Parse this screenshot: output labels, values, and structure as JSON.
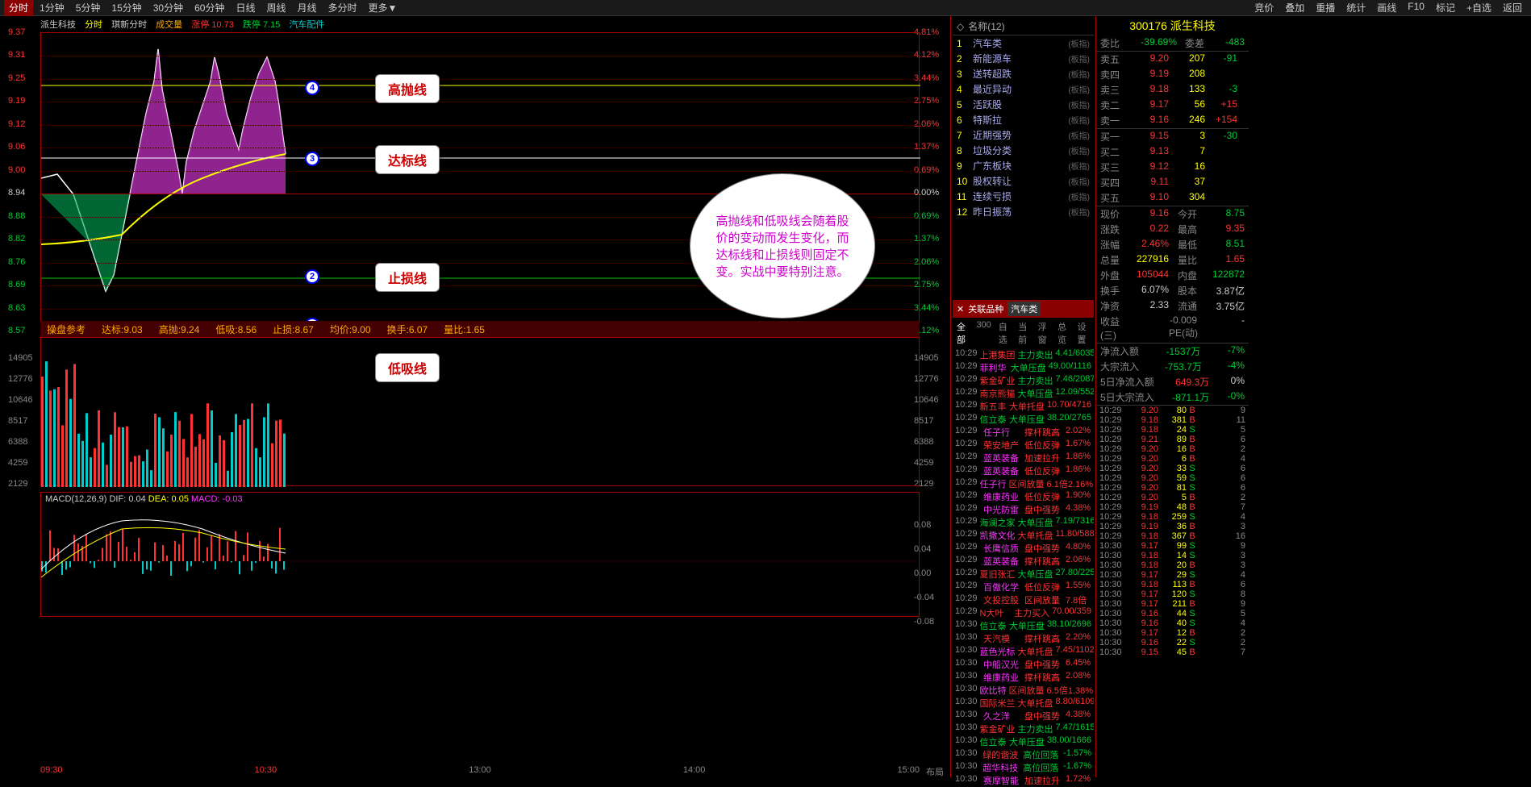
{
  "topMenu": {
    "left": [
      "分时",
      "1分钟",
      "5分钟",
      "15分钟",
      "30分钟",
      "60分钟",
      "日线",
      "周线",
      "月线",
      "多分时",
      "更多▼"
    ],
    "right": [
      "竞价",
      "叠加",
      "重播",
      "统计",
      "画线",
      "F10",
      "标记",
      "+自选",
      "返回"
    ],
    "activeIndex": 0
  },
  "chartHeader": {
    "stock": "派生科技",
    "period": "分时",
    "variant": "琪新分时",
    "volLabel": "成交量",
    "upLimit": "涨停 10.73",
    "downLimit": "跌停 7.15",
    "sector": "汽车配件"
  },
  "priceAxis": {
    "left": [
      "9.37",
      "9.31",
      "9.25",
      "9.19",
      "9.12",
      "9.06",
      "9.00",
      "8.94",
      "8.88",
      "8.82",
      "8.76",
      "8.69",
      "8.63",
      "8.57"
    ],
    "right": [
      "4.81%",
      "4.12%",
      "3.44%",
      "2.75%",
      "2.06%",
      "1.37%",
      "0.69%",
      "0.00%",
      "0.69%",
      "1.37%",
      "2.06%",
      "2.75%",
      "3.44%",
      "4.12%"
    ]
  },
  "volumeAxis": [
    "14905",
    "12776",
    "10646",
    "8517",
    "6388",
    "4259",
    "2129"
  ],
  "annotations": {
    "a1": "高抛线",
    "a2": "达标线",
    "a3": "止损线",
    "a4": "低吸线",
    "bubble": "高抛线和低吸线会随着股价的变动而发生变化，而达标线和止损线则固定不变。实战中要特别注意。"
  },
  "indicatorBar": {
    "title": "操盘参考",
    "dabiao": "达标:9.03",
    "gaopao": "高抛:9.24",
    "dixi": "低吸:8.56",
    "zhisun": "止损:8.67",
    "junjia": "均价:9.00",
    "huanshou": "换手:6.07",
    "liangbi": "量比:1.65"
  },
  "macd": {
    "title": "MACD(12,26,9)",
    "dif": "DIF: 0.04",
    "dea": "DEA: 0.05",
    "macd": "MACD: -0.03",
    "axis": [
      "0.08",
      "0.04",
      "0.00",
      "-0.04",
      "-0.08"
    ]
  },
  "timeAxis": [
    "09:30",
    "10:30",
    "13:00",
    "14:00",
    "15:00"
  ],
  "footerLabel": "布局",
  "categoryPanel": {
    "header": "名称(12)",
    "items": [
      {
        "idx": "1",
        "name": "汽车类",
        "tag": "(板指)"
      },
      {
        "idx": "2",
        "name": "新能源车",
        "tag": "(板指)"
      },
      {
        "idx": "3",
        "name": "送转超跌",
        "tag": "(板指)"
      },
      {
        "idx": "4",
        "name": "最近异动",
        "tag": "(板指)"
      },
      {
        "idx": "5",
        "name": "活跃股",
        "tag": "(板指)"
      },
      {
        "idx": "6",
        "name": "特斯拉",
        "tag": "(板指)"
      },
      {
        "idx": "7",
        "name": "近期强势",
        "tag": "(板指)"
      },
      {
        "idx": "8",
        "name": "垃圾分类",
        "tag": "(板指)"
      },
      {
        "idx": "9",
        "name": "广东板块",
        "tag": "(板指)"
      },
      {
        "idx": "10",
        "name": "股权转让",
        "tag": "(板指)"
      },
      {
        "idx": "11",
        "name": "连续亏损",
        "tag": "(板指)"
      },
      {
        "idx": "12",
        "name": "昨日振荡",
        "tag": "(板指)"
      }
    ]
  },
  "relatedHeader": {
    "title": "关联品种",
    "sector": "汽车类"
  },
  "relatedTabs": [
    "全部",
    "300",
    "自选",
    "当前",
    "浮窗",
    "总览",
    "设置"
  ],
  "newsFeed": [
    {
      "t": "10:29",
      "s": "上港集团",
      "a": "主力卖出",
      "v": "4.41/6035",
      "sc": "red",
      "ac": "green"
    },
    {
      "t": "10:29",
      "s": "菲利华",
      "a": "大单压盘",
      "v": "49.00/1116",
      "sc": "magenta",
      "ac": "green"
    },
    {
      "t": "10:29",
      "s": "紫金矿业",
      "a": "主力卖出",
      "v": "7.46/20871",
      "sc": "red",
      "ac": "green"
    },
    {
      "t": "10:29",
      "s": "南京熊猫",
      "a": "大单压盘",
      "v": "12.09/5522",
      "sc": "red",
      "ac": "green"
    },
    {
      "t": "10:29",
      "s": "新五丰",
      "a": "大单托盘",
      "v": "10.70/4716",
      "sc": "red",
      "ac": "red"
    },
    {
      "t": "10:29",
      "s": "信立泰",
      "a": "大单压盘",
      "v": "38.20/2765",
      "sc": "green",
      "ac": "green"
    },
    {
      "t": "10:29",
      "s": "任子行",
      "a": "撑杆跳高",
      "v": "2.02%",
      "sc": "magenta",
      "ac": "red"
    },
    {
      "t": "10:29",
      "s": "荣安地产",
      "a": "低位反弹",
      "v": "1.67%",
      "sc": "red",
      "ac": "red"
    },
    {
      "t": "10:29",
      "s": "蓝英装备",
      "a": "加速拉升",
      "v": "1.86%",
      "sc": "magenta",
      "ac": "red"
    },
    {
      "t": "10:29",
      "s": "蓝英装备",
      "a": "低位反弹",
      "v": "1.86%",
      "sc": "magenta",
      "ac": "red"
    },
    {
      "t": "10:29",
      "s": "任子行",
      "a": "区间放量",
      "v": "6.1倍2.16%",
      "sc": "magenta",
      "ac": "red"
    },
    {
      "t": "10:29",
      "s": "维康药业",
      "a": "低位反弹",
      "v": "1.90%",
      "sc": "magenta",
      "ac": "red"
    },
    {
      "t": "10:29",
      "s": "中光防雷",
      "a": "盘中强势",
      "v": "4.38%",
      "sc": "magenta",
      "ac": "red"
    },
    {
      "t": "10:29",
      "s": "海澜之家",
      "a": "大单压盘",
      "v": "7.19/7316",
      "sc": "green",
      "ac": "green"
    },
    {
      "t": "10:29",
      "s": "凯撒文化",
      "a": "大单托盘",
      "v": "11.80/5883",
      "sc": "magenta",
      "ac": "red"
    },
    {
      "t": "10:29",
      "s": "长鹰信质",
      "a": "盘中强势",
      "v": "4.80%",
      "sc": "magenta",
      "ac": "red"
    },
    {
      "t": "10:29",
      "s": "蓝英装备",
      "a": "撑杆跳高",
      "v": "2.06%",
      "sc": "magenta",
      "ac": "red"
    },
    {
      "t": "10:29",
      "s": "夏旧张汇",
      "a": "大单压盘",
      "v": "27.80/2257",
      "sc": "red",
      "ac": "green"
    },
    {
      "t": "10:29",
      "s": "百傲化学",
      "a": "低位反弹",
      "v": "1.55%",
      "sc": "magenta",
      "ac": "red"
    },
    {
      "t": "10:29",
      "s": "文投控股",
      "a": "区间放量",
      "v": "7.8倍",
      "sc": "red",
      "ac": "red"
    },
    {
      "t": "10:29",
      "s": "N大叶",
      "a": "主力买入",
      "v": "70.00/359",
      "sc": "red",
      "ac": "red"
    },
    {
      "t": "10:30",
      "s": "信立泰",
      "a": "大单压盘",
      "v": "38.10/2696",
      "sc": "green",
      "ac": "green"
    },
    {
      "t": "10:30",
      "s": "天汽模",
      "a": "撑杆跳高",
      "v": "2.20%",
      "sc": "red",
      "ac": "red"
    },
    {
      "t": "10:30",
      "s": "蓝色光标",
      "a": "大单托盘",
      "v": "7.45/11023",
      "sc": "magenta",
      "ac": "red"
    },
    {
      "t": "10:30",
      "s": "中船汉光",
      "a": "盘中强势",
      "v": "6.45%",
      "sc": "magenta",
      "ac": "red"
    },
    {
      "t": "10:30",
      "s": "维康药业",
      "a": "撑杆跳高",
      "v": "2.08%",
      "sc": "magenta",
      "ac": "red"
    },
    {
      "t": "10:30",
      "s": "欧比特",
      "a": "区间放量",
      "v": "6.5倍1.38%",
      "sc": "magenta",
      "ac": "red"
    },
    {
      "t": "10:30",
      "s": "国际米兰",
      "a": "大单托盘",
      "v": "8.80/6109",
      "sc": "red",
      "ac": "red"
    },
    {
      "t": "10:30",
      "s": "久之洋",
      "a": "盘中强势",
      "v": "4.38%",
      "sc": "magenta",
      "ac": "red"
    },
    {
      "t": "10:30",
      "s": "紫金矿业",
      "a": "主力卖出",
      "v": "7.47/16151",
      "sc": "red",
      "ac": "green"
    },
    {
      "t": "10:30",
      "s": "信立泰",
      "a": "大单压盘",
      "v": "38.00/1666",
      "sc": "green",
      "ac": "green"
    },
    {
      "t": "10:30",
      "s": "绿的谐波",
      "a": "高位回落",
      "v": "-1.57%",
      "sc": "red",
      "ac": "green"
    },
    {
      "t": "10:30",
      "s": "超华科技",
      "a": "高位回落",
      "v": "-1.67%",
      "sc": "magenta",
      "ac": "green"
    },
    {
      "t": "10:30",
      "s": "赛摩智能",
      "a": "加速拉升",
      "v": "1.72%",
      "sc": "magenta",
      "ac": "red"
    }
  ],
  "stockInfo": {
    "code": "300176",
    "name": "派生科技",
    "weibi": "委比",
    "weibiVal": "-39.69%",
    "weicha": "委差",
    "weichaVal": "-483"
  },
  "orderBook": {
    "sells": [
      {
        "l": "卖五",
        "p": "9.20",
        "q": "207",
        "c": "-91"
      },
      {
        "l": "卖四",
        "p": "9.19",
        "q": "208",
        "c": ""
      },
      {
        "l": "卖三",
        "p": "9.18",
        "q": "133",
        "c": "-3"
      },
      {
        "l": "卖二",
        "p": "9.17",
        "q": "56",
        "c": "+15"
      },
      {
        "l": "卖一",
        "p": "9.16",
        "q": "246",
        "c": "+154"
      }
    ],
    "buys": [
      {
        "l": "买一",
        "p": "9.15",
        "q": "3",
        "c": "-30"
      },
      {
        "l": "买二",
        "p": "9.13",
        "q": "7",
        "c": ""
      },
      {
        "l": "买三",
        "p": "9.12",
        "q": "16",
        "c": ""
      },
      {
        "l": "买四",
        "p": "9.11",
        "q": "37",
        "c": ""
      },
      {
        "l": "买五",
        "p": "9.10",
        "q": "304",
        "c": ""
      }
    ]
  },
  "stats": [
    {
      "l1": "现价",
      "v1": "9.16",
      "v1c": "red",
      "l2": "今开",
      "v2": "8.75",
      "v2c": "green"
    },
    {
      "l1": "涨跌",
      "v1": "0.22",
      "v1c": "red",
      "l2": "最高",
      "v2": "9.35",
      "v2c": "red"
    },
    {
      "l1": "涨幅",
      "v1": "2.46%",
      "v1c": "red",
      "l2": "最低",
      "v2": "8.51",
      "v2c": "green"
    },
    {
      "l1": "总量",
      "v1": "227916",
      "v1c": "yellow",
      "l2": "量比",
      "v2": "1.65",
      "v2c": "red"
    },
    {
      "l1": "外盘",
      "v1": "105044",
      "v1c": "red",
      "l2": "内盘",
      "v2": "122872",
      "v2c": "green"
    },
    {
      "l1": "换手",
      "v1": "6.07%",
      "v1c": "white",
      "l2": "股本",
      "v2": "3.87亿",
      "v2c": "white"
    },
    {
      "l1": "净资",
      "v1": "2.33",
      "v1c": "white",
      "l2": "流通",
      "v2": "3.75亿",
      "v2c": "white"
    },
    {
      "l1": "收益(三)",
      "v1": "",
      "v1c": "white",
      "l2": "-0.009 PE(动)",
      "v2": "-",
      "v2c": "white"
    }
  ],
  "flowStats": [
    {
      "l": "净流入额",
      "v": "-1537万",
      "vc": "green",
      "p": "-7%",
      "pc": "green"
    },
    {
      "l": "大宗流入",
      "v": "-753.7万",
      "vc": "green",
      "p": "-4%",
      "pc": "green"
    },
    {
      "l": "5日净流入额",
      "v": "649.3万",
      "vc": "red",
      "p": "0%",
      "pc": "white"
    },
    {
      "l": "5日大宗流入",
      "v": "-871.1万",
      "vc": "green",
      "p": "-0%",
      "pc": "green"
    }
  ],
  "ticks": [
    {
      "t": "10:29",
      "p": "9.20",
      "pc": "red",
      "v": "80",
      "d": "B",
      "dc": "red",
      "n": "9"
    },
    {
      "t": "10:29",
      "p": "9.18",
      "pc": "red",
      "v": "381",
      "d": "B",
      "dc": "red",
      "n": "11"
    },
    {
      "t": "10:29",
      "p": "9.18",
      "pc": "red",
      "v": "24",
      "d": "S",
      "dc": "green",
      "n": "5"
    },
    {
      "t": "10:29",
      "p": "9.21",
      "pc": "red",
      "v": "89",
      "d": "B",
      "dc": "red",
      "n": "6"
    },
    {
      "t": "10:29",
      "p": "9.20",
      "pc": "red",
      "v": "16",
      "d": "B",
      "dc": "red",
      "n": "2"
    },
    {
      "t": "10:29",
      "p": "9.20",
      "pc": "red",
      "v": "6",
      "d": "B",
      "dc": "red",
      "n": "4"
    },
    {
      "t": "10:29",
      "p": "9.20",
      "pc": "red",
      "v": "33",
      "d": "S",
      "dc": "green",
      "n": "6"
    },
    {
      "t": "10:29",
      "p": "9.20",
      "pc": "red",
      "v": "59",
      "d": "S",
      "dc": "green",
      "n": "6"
    },
    {
      "t": "10:29",
      "p": "9.20",
      "pc": "red",
      "v": "81",
      "d": "S",
      "dc": "green",
      "n": "6"
    },
    {
      "t": "10:29",
      "p": "9.20",
      "pc": "red",
      "v": "5",
      "d": "B",
      "dc": "red",
      "n": "2"
    },
    {
      "t": "10:29",
      "p": "9.19",
      "pc": "red",
      "v": "48",
      "d": "B",
      "dc": "red",
      "n": "7"
    },
    {
      "t": "10:29",
      "p": "9.18",
      "pc": "red",
      "v": "259",
      "d": "S",
      "dc": "green",
      "n": "4"
    },
    {
      "t": "10:29",
      "p": "9.19",
      "pc": "red",
      "v": "36",
      "d": "B",
      "dc": "red",
      "n": "3"
    },
    {
      "t": "10:29",
      "p": "9.18",
      "pc": "red",
      "v": "367",
      "d": "B",
      "dc": "red",
      "n": "16"
    },
    {
      "t": "10:30",
      "p": "9.17",
      "pc": "red",
      "v": "99",
      "d": "S",
      "dc": "green",
      "n": "9"
    },
    {
      "t": "10:30",
      "p": "9.18",
      "pc": "red",
      "v": "14",
      "d": "S",
      "dc": "green",
      "n": "3"
    },
    {
      "t": "10:30",
      "p": "9.18",
      "pc": "red",
      "v": "20",
      "d": "B",
      "dc": "red",
      "n": "3"
    },
    {
      "t": "10:30",
      "p": "9.17",
      "pc": "red",
      "v": "29",
      "d": "S",
      "dc": "green",
      "n": "4"
    },
    {
      "t": "10:30",
      "p": "9.18",
      "pc": "red",
      "v": "113",
      "d": "B",
      "dc": "red",
      "n": "6"
    },
    {
      "t": "10:30",
      "p": "9.17",
      "pc": "red",
      "v": "120",
      "d": "S",
      "dc": "green",
      "n": "8"
    },
    {
      "t": "10:30",
      "p": "9.17",
      "pc": "red",
      "v": "211",
      "d": "B",
      "dc": "red",
      "n": "9"
    },
    {
      "t": "10:30",
      "p": "9.16",
      "pc": "red",
      "v": "44",
      "d": "S",
      "dc": "green",
      "n": "5"
    },
    {
      "t": "10:30",
      "p": "9.16",
      "pc": "red",
      "v": "40",
      "d": "S",
      "dc": "green",
      "n": "4"
    },
    {
      "t": "10:30",
      "p": "9.17",
      "pc": "red",
      "v": "12",
      "d": "B",
      "dc": "red",
      "n": "2"
    },
    {
      "t": "10:30",
      "p": "9.16",
      "pc": "red",
      "v": "22",
      "d": "S",
      "dc": "green",
      "n": "2"
    },
    {
      "t": "10:30",
      "p": "9.15",
      "pc": "red",
      "v": "45",
      "d": "B",
      "dc": "red",
      "n": "7"
    }
  ]
}
